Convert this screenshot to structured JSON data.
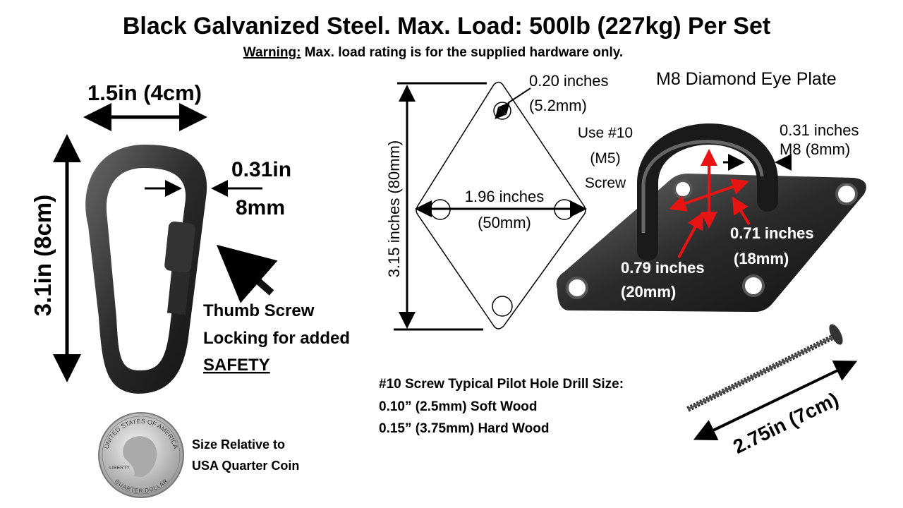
{
  "header": {
    "title": "Black Galvanized Steel. Max. Load: 500lb (227kg) Per Set",
    "warning_label": "Warning:",
    "warning_text": " Max. load rating is for the supplied hardware only."
  },
  "carabiner": {
    "width_label": "1.5in (4cm)",
    "height_label": "3.1in (8cm)",
    "wire_label": "0.31in",
    "wire_metric": "8mm",
    "lock_line1": "Thumb Screw",
    "lock_line2": "Locking for added",
    "lock_line3": "SAFETY"
  },
  "coin": {
    "line1": "Size Relative to",
    "line2": "USA Quarter Coin",
    "coin_text_top": "UNITED STATES OF AMERICA",
    "coin_text_bottom": "QUARTER DOLLAR",
    "coin_text_left": "LIBERTY"
  },
  "diagram": {
    "height_label": "3.15 inches (80mm)",
    "hole_label": "0.20 inches",
    "hole_metric": "(5.2mm)",
    "width_label": "1.96 inches",
    "width_metric": "(50mm)",
    "screw_line1": "Use #10",
    "screw_line2": "(M5)",
    "screw_line3": "Screw"
  },
  "eye_plate": {
    "title": "M8 Diamond Eye Plate",
    "wire_label": "0.31 inches",
    "wire_metric": "M8 (8mm)",
    "inner_width_label": "0.71 inches",
    "inner_width_metric": "(18mm)",
    "inner_height_label": "0.79 inches",
    "inner_height_metric": "(20mm)",
    "arrow_color": "#e81414"
  },
  "screw": {
    "length_label": "2.75in (7cm)",
    "pilot_title": "#10 Screw Typical Pilot Hole Drill Size:",
    "soft_wood": "0.10” (2.5mm) Soft Wood",
    "hard_wood": "0.15” (3.75mm) Hard Wood"
  }
}
